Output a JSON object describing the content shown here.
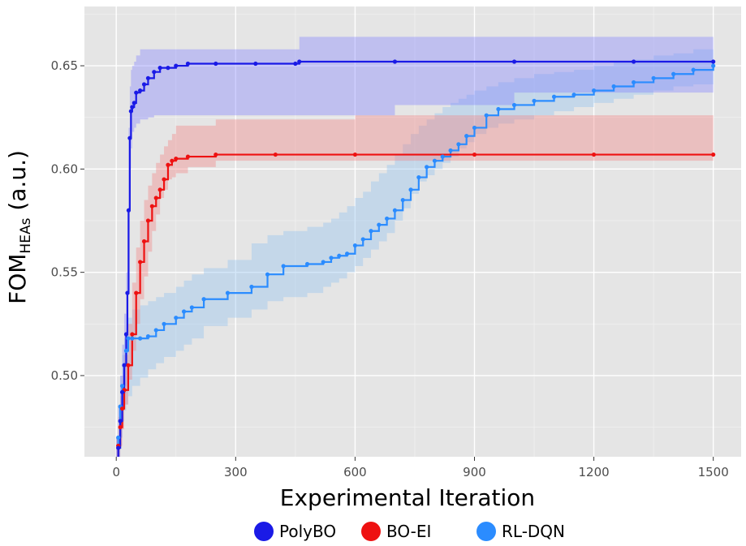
{
  "chart_data": {
    "type": "line",
    "xlabel": "Experimental Iteration",
    "ylabel_main": "FOM",
    "ylabel_sub": "HEAs",
    "ylabel_suffix": " (a.u.)",
    "xlim": [
      -80,
      1570
    ],
    "ylim": [
      0.4607,
      0.6787
    ],
    "x_ticks": [
      0,
      300,
      600,
      900,
      1200,
      1500
    ],
    "y_ticks": [
      0.5,
      0.55,
      0.6,
      0.65
    ],
    "y_tick_labels": [
      "0.50",
      "0.55",
      "0.60",
      "0.65"
    ],
    "grid": true,
    "legend_position": "bottom",
    "series": [
      {
        "name": "PolyBO",
        "color": "#1a1ae6",
        "band_color": "#8080ff",
        "x": [
          0,
          5,
          10,
          15,
          20,
          25,
          28,
          31,
          34,
          37,
          40,
          45,
          50,
          60,
          70,
          80,
          95,
          110,
          130,
          150,
          180,
          250,
          350,
          450,
          460,
          700,
          1000,
          1300,
          1500
        ],
        "y": [
          0.45,
          0.465,
          0.478,
          0.492,
          0.505,
          0.52,
          0.54,
          0.58,
          0.615,
          0.628,
          0.63,
          0.632,
          0.637,
          0.638,
          0.641,
          0.644,
          0.647,
          0.649,
          0.649,
          0.65,
          0.651,
          0.651,
          0.651,
          0.651,
          0.652,
          0.652,
          0.652,
          0.652,
          0.652
        ],
        "lower": [
          0.42,
          0.44,
          0.455,
          0.47,
          0.485,
          0.495,
          0.51,
          0.54,
          0.58,
          0.6,
          0.61,
          0.618,
          0.62,
          0.622,
          0.624,
          0.624,
          0.625,
          0.626,
          0.626,
          0.626,
          0.626,
          0.626,
          0.626,
          0.626,
          0.626,
          0.626,
          0.631,
          0.637,
          0.637
        ],
        "upper": [
          0.47,
          0.485,
          0.5,
          0.515,
          0.53,
          0.55,
          0.58,
          0.62,
          0.64,
          0.648,
          0.65,
          0.652,
          0.655,
          0.658,
          0.658,
          0.658,
          0.658,
          0.658,
          0.658,
          0.658,
          0.658,
          0.658,
          0.658,
          0.658,
          0.664,
          0.664,
          0.664,
          0.664,
          0.664
        ]
      },
      {
        "name": "BO-EI",
        "color": "#ee1111",
        "band_color": "#f28080",
        "x": [
          0,
          5,
          10,
          15,
          20,
          30,
          40,
          50,
          60,
          70,
          80,
          90,
          100,
          110,
          120,
          130,
          140,
          150,
          180,
          250,
          400,
          600,
          900,
          1200,
          1500
        ],
        "y": [
          0.458,
          0.466,
          0.475,
          0.484,
          0.493,
          0.505,
          0.52,
          0.54,
          0.555,
          0.565,
          0.575,
          0.582,
          0.586,
          0.59,
          0.595,
          0.602,
          0.604,
          0.605,
          0.606,
          0.607,
          0.607,
          0.607,
          0.607,
          0.607,
          0.607
        ],
        "lower": [
          0.445,
          0.45,
          0.458,
          0.466,
          0.474,
          0.486,
          0.498,
          0.512,
          0.525,
          0.537,
          0.548,
          0.56,
          0.57,
          0.578,
          0.586,
          0.59,
          0.595,
          0.596,
          0.598,
          0.601,
          0.604,
          0.604,
          0.604,
          0.604,
          0.604
        ],
        "upper": [
          0.47,
          0.48,
          0.49,
          0.5,
          0.51,
          0.525,
          0.545,
          0.562,
          0.575,
          0.585,
          0.592,
          0.598,
          0.603,
          0.607,
          0.611,
          0.614,
          0.617,
          0.621,
          0.621,
          0.624,
          0.624,
          0.626,
          0.626,
          0.626,
          0.626
        ]
      },
      {
        "name": "RL-DQN",
        "color": "#2b8cff",
        "band_color": "#8ec0ee",
        "x": [
          0,
          5,
          10,
          15,
          20,
          25,
          30,
          40,
          60,
          80,
          100,
          120,
          150,
          170,
          190,
          220,
          280,
          340,
          380,
          420,
          480,
          520,
          540,
          560,
          580,
          600,
          620,
          640,
          660,
          680,
          700,
          720,
          740,
          760,
          780,
          800,
          820,
          840,
          860,
          880,
          900,
          930,
          960,
          1000,
          1050,
          1100,
          1150,
          1200,
          1250,
          1300,
          1350,
          1400,
          1450,
          1500
        ],
        "y": [
          0.455,
          0.47,
          0.485,
          0.495,
          0.505,
          0.512,
          0.518,
          0.518,
          0.518,
          0.519,
          0.522,
          0.525,
          0.528,
          0.531,
          0.533,
          0.537,
          0.54,
          0.543,
          0.549,
          0.553,
          0.554,
          0.555,
          0.557,
          0.558,
          0.559,
          0.563,
          0.566,
          0.57,
          0.573,
          0.576,
          0.58,
          0.585,
          0.59,
          0.596,
          0.601,
          0.604,
          0.606,
          0.609,
          0.612,
          0.616,
          0.62,
          0.626,
          0.629,
          0.631,
          0.633,
          0.635,
          0.636,
          0.638,
          0.64,
          0.642,
          0.644,
          0.646,
          0.648,
          0.65
        ],
        "lower": [
          0.44,
          0.45,
          0.46,
          0.47,
          0.478,
          0.483,
          0.486,
          0.49,
          0.495,
          0.499,
          0.503,
          0.506,
          0.509,
          0.512,
          0.515,
          0.518,
          0.524,
          0.528,
          0.532,
          0.536,
          0.538,
          0.54,
          0.543,
          0.545,
          0.547,
          0.55,
          0.553,
          0.557,
          0.561,
          0.565,
          0.569,
          0.575,
          0.581,
          0.588,
          0.594,
          0.597,
          0.6,
          0.603,
          0.606,
          0.61,
          0.613,
          0.617,
          0.62,
          0.622,
          0.624,
          0.626,
          0.628,
          0.63,
          0.632,
          0.634,
          0.636,
          0.638,
          0.64,
          0.641
        ],
        "upper": [
          0.47,
          0.485,
          0.5,
          0.51,
          0.518,
          0.523,
          0.528,
          0.532,
          0.534,
          0.536,
          0.538,
          0.54,
          0.543,
          0.546,
          0.549,
          0.552,
          0.556,
          0.564,
          0.568,
          0.57,
          0.572,
          0.574,
          0.576,
          0.579,
          0.582,
          0.586,
          0.589,
          0.594,
          0.598,
          0.602,
          0.607,
          0.612,
          0.617,
          0.621,
          0.624,
          0.627,
          0.63,
          0.632,
          0.634,
          0.636,
          0.638,
          0.64,
          0.642,
          0.644,
          0.646,
          0.647,
          0.648,
          0.65,
          0.652,
          0.653,
          0.655,
          0.656,
          0.658,
          0.66
        ]
      }
    ]
  }
}
